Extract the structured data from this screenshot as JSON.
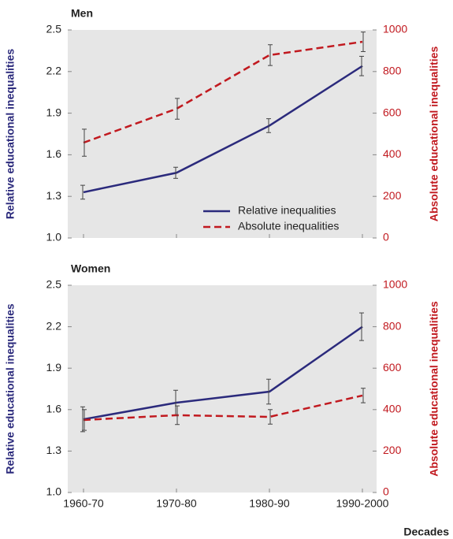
{
  "chart_data": [
    {
      "type": "line",
      "title": "Men",
      "ylabel": "Relative educational inequalities",
      "y2label": "Absolute educational inequalities",
      "categories": [
        "1960-70",
        "1970-80",
        "1980-90",
        "1990-2000"
      ],
      "series": [
        {
          "name": "Relative inequalities",
          "color": "#2b2a7c",
          "linestyle": "solid",
          "values": [
            1.33,
            1.47,
            1.81,
            2.24
          ],
          "error": [
            0.05,
            0.04,
            0.05,
            0.07
          ]
        },
        {
          "name": "Absolute inequalities",
          "color": "#c1191f",
          "linestyle": "dashed",
          "axis": "y2",
          "values": [
            458,
            621,
            879,
            943
          ],
          "error": [
            65,
            50,
            50,
            47
          ]
        }
      ],
      "ylim": [
        1.0,
        2.5
      ],
      "yticks": [
        {
          "value": 1.0,
          "label": "1.0"
        },
        1.3,
        1.6,
        1.9,
        2.2,
        2.5
      ],
      "y2lim": [
        0,
        1000
      ],
      "y2ticks": [
        0,
        200,
        400,
        600,
        800,
        1000
      ],
      "legend": "lower right",
      "background": "#e6e6e6"
    },
    {
      "type": "line",
      "title": "Women",
      "ylabel": "Relative educational inequalities",
      "y2label": "Absolute educational inequalities",
      "xlabel": "Decades",
      "categories": [
        "1960-70",
        "1970-80",
        "1980-90",
        "1990-2000"
      ],
      "series": [
        {
          "color": "#2b2a7c",
          "linestyle": "solid",
          "values": [
            1.53,
            1.65,
            1.73,
            2.2
          ],
          "error": [
            0.09,
            0.09,
            0.09,
            0.1
          ]
        },
        {
          "color": "#c1191f",
          "linestyle": "dashed",
          "axis": "y2",
          "values": [
            350,
            373,
            365,
            468
          ],
          "error": [
            50,
            45,
            35,
            35
          ]
        }
      ],
      "ylim": [
        1.0,
        2.5
      ],
      "yticks": [
        {
          "value": 1.0,
          "label": "1.0"
        },
        1.3,
        1.6,
        1.9,
        2.2,
        2.5
      ],
      "y2lim": [
        0,
        1000
      ],
      "y2ticks": [
        0,
        200,
        400,
        600,
        800,
        1000
      ],
      "background": "#e6e6e6"
    }
  ]
}
